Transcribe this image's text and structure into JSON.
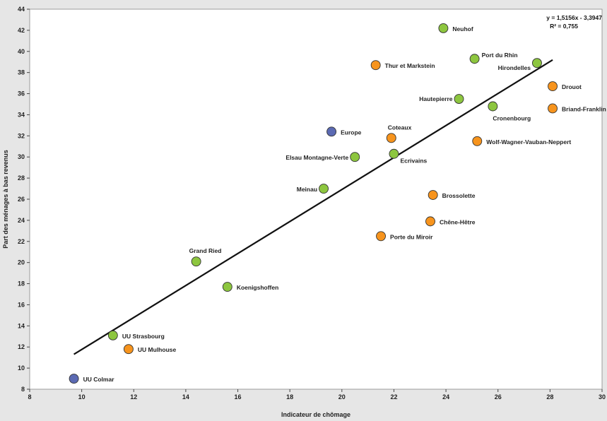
{
  "chart_data": {
    "type": "scatter",
    "title": "",
    "xlabel": "Indicateur de chômage",
    "ylabel": "Part des ménages à bas revenus",
    "xlim": [
      8,
      30
    ],
    "ylim": [
      8,
      44
    ],
    "x_ticks": [
      8,
      10,
      12,
      14,
      16,
      18,
      20,
      22,
      24,
      26,
      28,
      30
    ],
    "y_ticks": [
      8,
      10,
      12,
      14,
      16,
      18,
      20,
      22,
      24,
      26,
      28,
      30,
      32,
      34,
      36,
      38,
      40,
      42,
      44
    ],
    "grid": false,
    "legend": "none",
    "colors": {
      "green": "#8dc63f",
      "orange": "#f7941d",
      "blue": "#5b6ab3"
    },
    "points": [
      {
        "label": "Neuhof",
        "x": 23.9,
        "y": 42.2,
        "color": "green"
      },
      {
        "label": "Port du Rhin",
        "x": 25.1,
        "y": 39.3,
        "color": "green"
      },
      {
        "label": "Hirondelles",
        "x": 27.5,
        "y": 38.9,
        "color": "green"
      },
      {
        "label": "Thur et Markstein",
        "x": 21.3,
        "y": 38.7,
        "color": "orange"
      },
      {
        "label": "Drouot",
        "x": 28.1,
        "y": 36.7,
        "color": "orange"
      },
      {
        "label": "Hautepierre",
        "x": 24.5,
        "y": 35.5,
        "color": "green"
      },
      {
        "label": "Cronenbourg",
        "x": 25.8,
        "y": 34.8,
        "color": "green"
      },
      {
        "label": "Briand-Franklin",
        "x": 28.1,
        "y": 34.6,
        "color": "orange"
      },
      {
        "label": "Europe",
        "x": 19.6,
        "y": 32.4,
        "color": "blue"
      },
      {
        "label": "Coteaux",
        "x": 21.9,
        "y": 31.8,
        "color": "orange"
      },
      {
        "label": "Wolf-Wagner-Vauban-Neppert",
        "x": 25.2,
        "y": 31.5,
        "color": "orange"
      },
      {
        "label": "Ecrivains",
        "x": 22.0,
        "y": 30.3,
        "color": "green"
      },
      {
        "label": "Elsau Montagne-Verte",
        "x": 20.5,
        "y": 30.0,
        "color": "green"
      },
      {
        "label": "Meinau",
        "x": 19.3,
        "y": 27.0,
        "color": "green"
      },
      {
        "label": "Brossolette",
        "x": 23.5,
        "y": 26.4,
        "color": "orange"
      },
      {
        "label": "Chêne-Hêtre",
        "x": 23.4,
        "y": 23.9,
        "color": "orange"
      },
      {
        "label": "Porte du Miroir",
        "x": 21.5,
        "y": 22.5,
        "color": "orange"
      },
      {
        "label": "Grand Ried",
        "x": 14.4,
        "y": 20.1,
        "color": "green"
      },
      {
        "label": "Koenigshoffen",
        "x": 15.6,
        "y": 17.7,
        "color": "green"
      },
      {
        "label": "UU Strasbourg",
        "x": 11.2,
        "y": 13.1,
        "color": "green"
      },
      {
        "label": "UU Mulhouse",
        "x": 11.8,
        "y": 11.8,
        "color": "orange"
      },
      {
        "label": "UU Colmar",
        "x": 9.7,
        "y": 9.0,
        "color": "blue"
      }
    ],
    "trendline": {
      "x": [
        9.7,
        28.1
      ],
      "equation": "y = 1,5156x - 3,3947",
      "r2": "R² = 0,755"
    }
  }
}
